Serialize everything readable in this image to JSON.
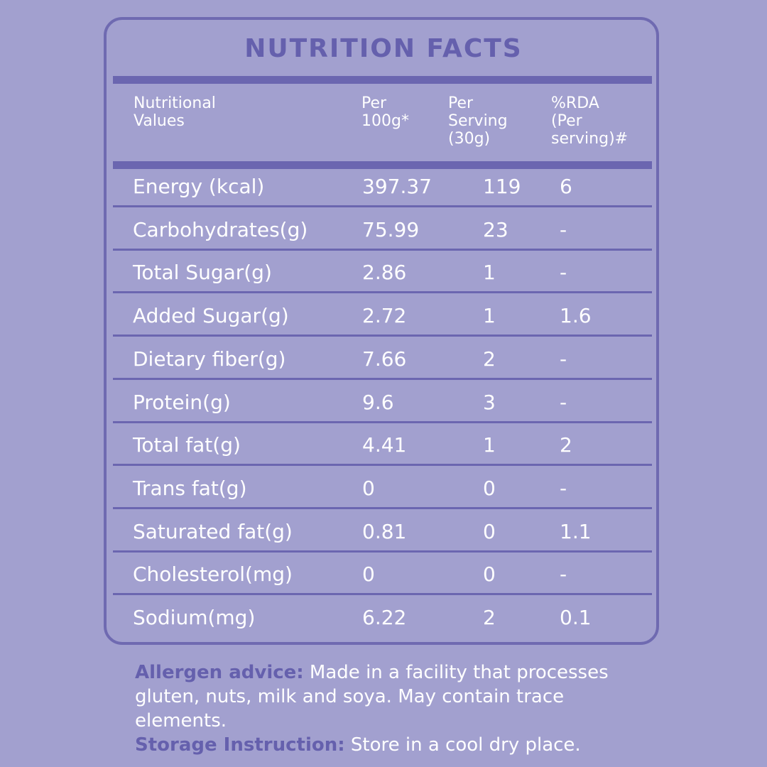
{
  "title": "NUTRITION FACTS",
  "headers": {
    "nutrient": "Nutritional\nValues",
    "per100g": "Per\n100g*",
    "per_serving": "Per\nServing\n(30g)",
    "rda": "%RDA\n(Per\nserving)#"
  },
  "rows": [
    {
      "name": "Energy (kcal)",
      "per100g": "397.37",
      "serving": "119",
      "rda": "6"
    },
    {
      "name": "Carbohydrates(g)",
      "per100g": "75.99",
      "serving": "23",
      "rda": "-"
    },
    {
      "name": "Total Sugar(g)",
      "per100g": "2.86",
      "serving": "1",
      "rda": "-"
    },
    {
      "name": "Added Sugar(g)",
      "per100g": "2.72",
      "serving": "1",
      "rda": "1.6"
    },
    {
      "name": "Dietary fiber(g)",
      "per100g": "7.66",
      "serving": "2",
      "rda": "-"
    },
    {
      "name": "Protein(g)",
      "per100g": "9.6",
      "serving": "3",
      "rda": "-"
    },
    {
      "name": "Total fat(g)",
      "per100g": "4.41",
      "serving": "1",
      "rda": "2"
    },
    {
      "name": "Trans fat(g)",
      "per100g": "0",
      "serving": "0",
      "rda": "-"
    },
    {
      "name": "Saturated fat(g)",
      "per100g": "0.81",
      "serving": "0",
      "rda": "1.1"
    },
    {
      "name": "Cholesterol(mg)",
      "per100g": "0",
      "serving": "0",
      "rda": "-"
    },
    {
      "name": "Sodium(mg)",
      "per100g": "6.22",
      "serving": "2",
      "rda": "0.1"
    }
  ],
  "allergen": {
    "label": "Allergen advice:",
    "text": " Made in a facility that processes gluten, nuts, milk and soya. May contain trace elements."
  },
  "storage": {
    "label": "Storage Instruction:",
    "text": " Store in a cool dry place."
  },
  "colors": {
    "background": "#a2a0cf",
    "accent": "#6b66b0",
    "title": "#6560ad",
    "text": "#ffffff"
  }
}
